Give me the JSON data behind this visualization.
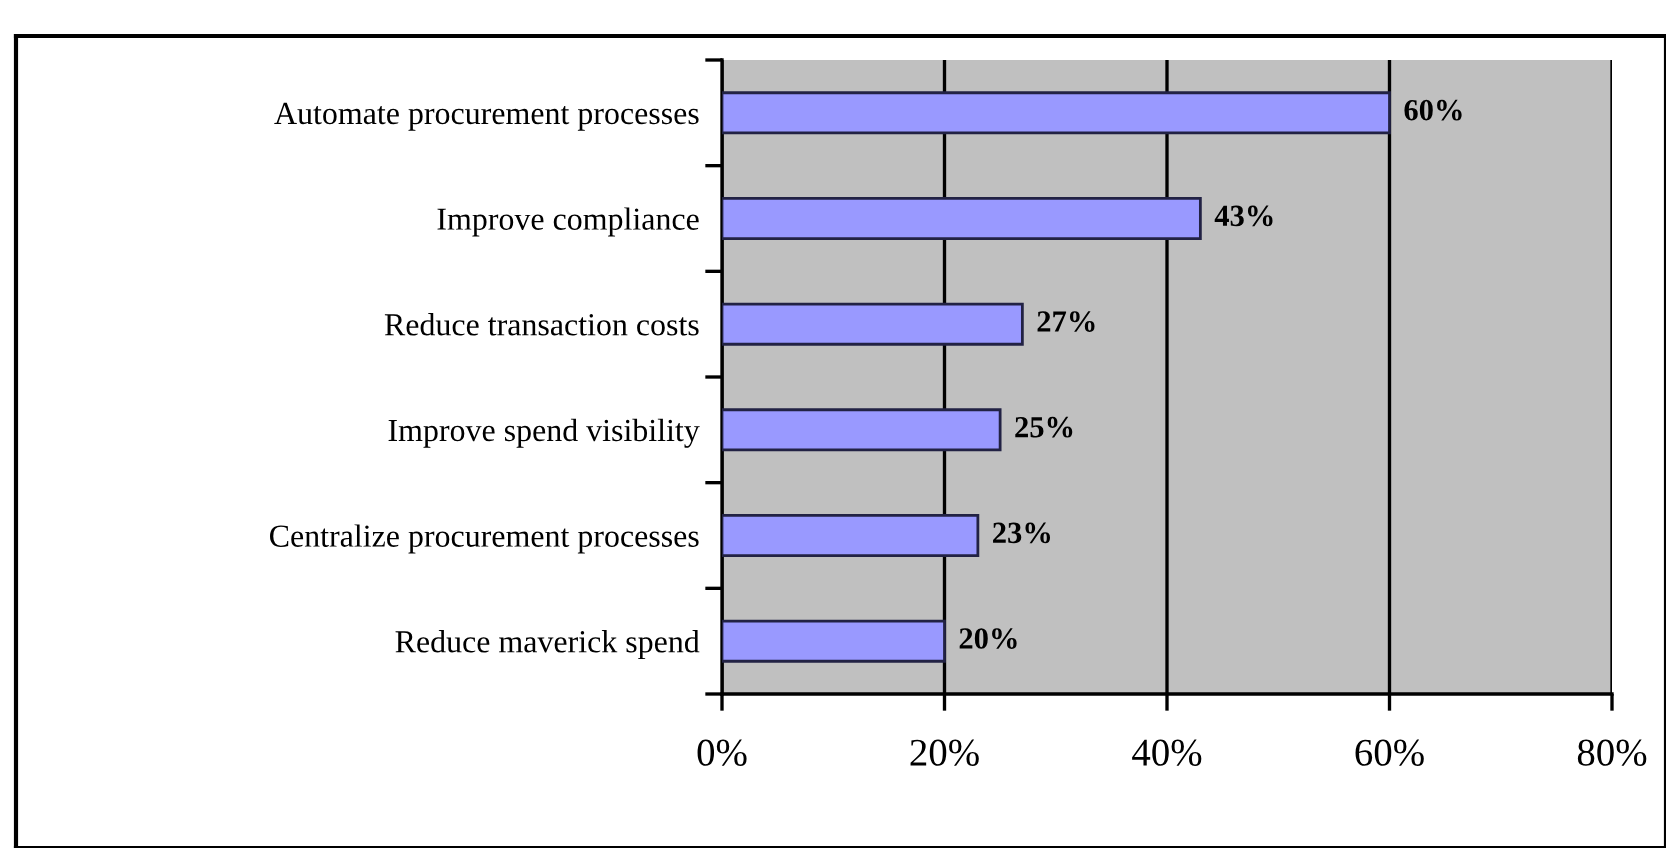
{
  "chart_data": {
    "type": "bar",
    "orientation": "horizontal",
    "categories": [
      "Automate procurement processes",
      "Improve compliance",
      "Reduce transaction costs",
      "Improve spend visibility",
      "Centralize procurement processes",
      "Reduce maverick spend"
    ],
    "values": [
      60,
      43,
      27,
      25,
      23,
      20
    ],
    "value_labels": [
      "60%",
      "43%",
      "27%",
      "25%",
      "23%",
      "20%"
    ],
    "color": "#9999ff",
    "xlim": [
      0,
      80
    ],
    "xticks": [
      {
        "value": 0,
        "label": "0%"
      },
      {
        "value": 20,
        "label": "20%"
      },
      {
        "value": 40,
        "label": "40%"
      },
      {
        "value": 60,
        "label": "60%"
      },
      {
        "value": 80,
        "label": "80%"
      }
    ],
    "grid": "x",
    "legend": false
  }
}
